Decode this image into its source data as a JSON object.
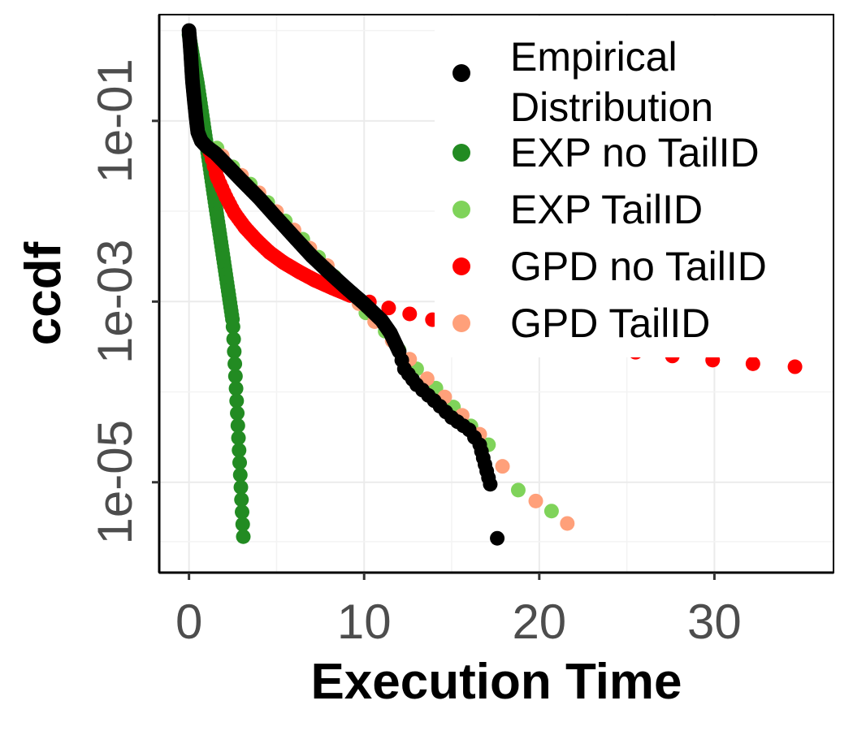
{
  "chart_data": {
    "type": "scatter",
    "xlabel": "Execution Time",
    "ylabel": "ccdf",
    "x_ticks": [
      0,
      10,
      20,
      30
    ],
    "x_tick_labels": [
      "0",
      "10",
      "20",
      "30"
    ],
    "y_scale": "log10",
    "y_ticks": [
      1e-05,
      0.001,
      0.1
    ],
    "y_tick_labels": [
      "1e-05",
      "1e-03",
      "1e-01"
    ],
    "xlim": [
      -1.7,
      36.8
    ],
    "ylim": [
      1e-06,
      1.5
    ],
    "grid": true,
    "legend_position": "top-right",
    "series": [
      {
        "name": "EXP no TailID",
        "legend_label": "EXP no TailID",
        "color": "#228B22",
        "mode": "dense-line",
        "x": [
          0,
          0.5,
          1.0,
          1.5,
          2.0,
          2.5,
          3.1
        ],
        "y": [
          0.9,
          0.25,
          0.055,
          0.012,
          0.0027,
          0.0006,
          2.5e-06
        ]
      },
      {
        "name": "EXP TailID",
        "legend_label": "EXP TailID",
        "color": "#7FD35A",
        "x": [
          1.6,
          2.5,
          3.5,
          4.5,
          5.5,
          6.5,
          7.4,
          8.3,
          9.2,
          10.1,
          11.2,
          12.0,
          13.0,
          14.1,
          15.1,
          16.1,
          17.1,
          18.8,
          20.7
        ],
        "y": [
          0.05,
          0.031,
          0.02,
          0.0125,
          0.0078,
          0.0049,
          0.0031,
          0.0019,
          0.0012,
          0.00075,
          0.00047,
          0.00029,
          0.00018,
          0.00011,
          6.8e-05,
          4.2e-05,
          2.6e-05,
          8.2e-06,
          4.8e-06
        ]
      },
      {
        "name": "GPD no TailID",
        "legend_label": "GPD no TailID",
        "color": "#FF0000",
        "mode": "dense-then-sparse",
        "x": [
          1.2,
          1.6,
          2.1,
          2.6,
          3.2,
          3.9,
          4.6,
          5.4,
          6.3,
          7.2,
          8.2,
          9.2,
          10.3,
          11.4,
          12.6,
          13.9,
          15.3,
          16.8,
          18.3,
          19.9,
          21.7,
          23.5,
          25.5,
          27.6,
          29.9,
          32.2,
          34.6
        ],
        "y": [
          0.045,
          0.024,
          0.0145,
          0.0095,
          0.0066,
          0.0047,
          0.0035,
          0.0027,
          0.00213,
          0.00172,
          0.00141,
          0.00117,
          0.00099,
          0.00085,
          0.00073,
          0.00063,
          0.00055,
          0.00048,
          0.00043,
          0.00038,
          0.00034,
          0.000305,
          0.000275,
          0.00025,
          0.000225,
          0.000205,
          0.00019
        ]
      },
      {
        "name": "GPD TailID",
        "legend_label": "GPD TailID",
        "color": "#FFA07A",
        "x": [
          1.9,
          3.0,
          4.0,
          5.0,
          6.0,
          6.9,
          7.9,
          8.8,
          9.7,
          10.6,
          11.6,
          12.6,
          13.6,
          14.6,
          15.6,
          16.6,
          17.9,
          19.8,
          21.6
        ],
        "y": [
          0.041,
          0.025,
          0.016,
          0.0099,
          0.0062,
          0.0039,
          0.0025,
          0.0015,
          0.00095,
          0.0006,
          0.00037,
          0.00023,
          0.00014,
          8.8e-05,
          5.5e-05,
          3.4e-05,
          1.5e-05,
          6.2e-06,
          3.5e-06
        ]
      },
      {
        "name": "Empirical Distribution",
        "legend_label": "Empirical\nDistribution",
        "color": "#000000",
        "mode": "dense-curve",
        "x": [
          0.0,
          0.05,
          0.1,
          0.15,
          0.2,
          0.3,
          0.4,
          0.5,
          0.7,
          1.0,
          1.5,
          2.0,
          3.0,
          4.0,
          5.0,
          6.0,
          7.0,
          8.0,
          9.0,
          10.0,
          11.0,
          11.5,
          12.0,
          12.3,
          13.0,
          14.0,
          15.0,
          16.0,
          16.6,
          17.2
        ],
        "y": [
          1.0,
          0.75,
          0.55,
          0.38,
          0.27,
          0.17,
          0.11,
          0.075,
          0.06,
          0.052,
          0.044,
          0.035,
          0.022,
          0.014,
          0.0085,
          0.0052,
          0.0032,
          0.0021,
          0.0014,
          0.00095,
          0.00062,
          0.00045,
          0.00028,
          0.00018,
          0.00012,
          8e-05,
          5.2e-05,
          3.8e-05,
          2.6e-05,
          9.5e-06
        ]
      }
    ]
  }
}
